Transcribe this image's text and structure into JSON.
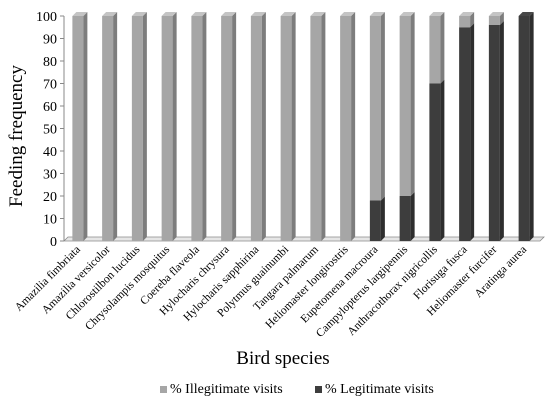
{
  "chart_data": {
    "type": "bar",
    "stacked": true,
    "xlabel": "Bird species",
    "ylabel": "Feeding frequency",
    "ylim": [
      0,
      100
    ],
    "yticks": [
      0,
      10,
      20,
      30,
      40,
      50,
      60,
      70,
      80,
      90,
      100
    ],
    "grid": false,
    "legend_position": "bottom",
    "categories": [
      "Amazilia fimbriata",
      "Amazilia versicolor",
      "Chlorostilbon lucidus",
      "Chrysolampis mosquitus",
      "Coereba flaveola",
      "Hylocharis chrysura",
      "Hylocharis sapphirina",
      "Polytmus guainumbi",
      "Tangara palmarum",
      "Heliomaster longirostris",
      "Eupetomena macroura",
      "Campylopterus largipennis",
      "Anthracothorax nigricollis",
      "Florisuga fusca",
      "Heliomaster furcifer",
      "Aratinga aurea"
    ],
    "series": [
      {
        "name": "% Legitimate visits",
        "color": "#3d3d3d",
        "values": [
          0,
          0,
          0,
          0,
          0,
          0,
          0,
          0,
          0,
          0,
          18,
          20,
          70,
          95,
          96,
          100
        ]
      },
      {
        "name": "% Illegitimate visits",
        "color": "#a6a6a6",
        "values": [
          100,
          100,
          100,
          100,
          100,
          100,
          100,
          100,
          100,
          100,
          82,
          80,
          30,
          5,
          4,
          0
        ]
      }
    ]
  }
}
